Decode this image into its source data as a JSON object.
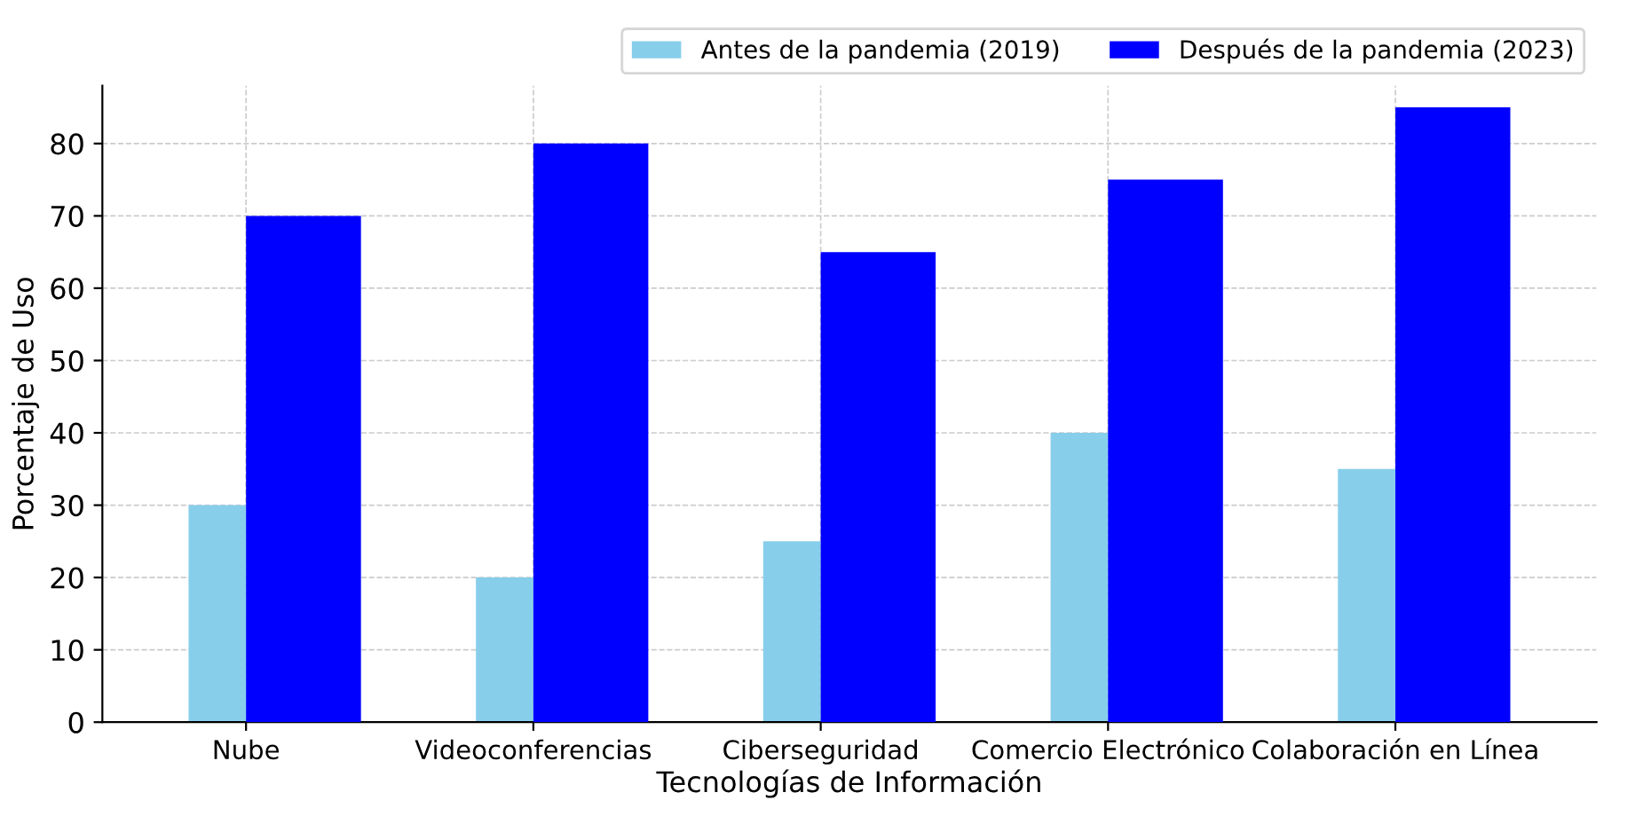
{
  "chart_data": {
    "type": "bar",
    "xlabel": "Tecnologías de Información",
    "ylabel": "Porcentaje de Uso",
    "categories": [
      "Nube",
      "Videoconferencias",
      "Ciberseguridad",
      "Comercio Electrónico",
      "Colaboración en Línea"
    ],
    "series": [
      {
        "name": "Antes de la pandemia (2019)",
        "color": "#87ceeb",
        "values": [
          30,
          20,
          25,
          40,
          35
        ]
      },
      {
        "name": "Después de la pandemia (2023)",
        "color": "#0000ff",
        "values": [
          70,
          80,
          65,
          75,
          85
        ]
      }
    ],
    "ylim": [
      0,
      88
    ],
    "yticks": [
      0,
      10,
      20,
      30,
      40,
      50,
      60,
      70,
      80
    ],
    "grid": true,
    "legend": "top right"
  }
}
